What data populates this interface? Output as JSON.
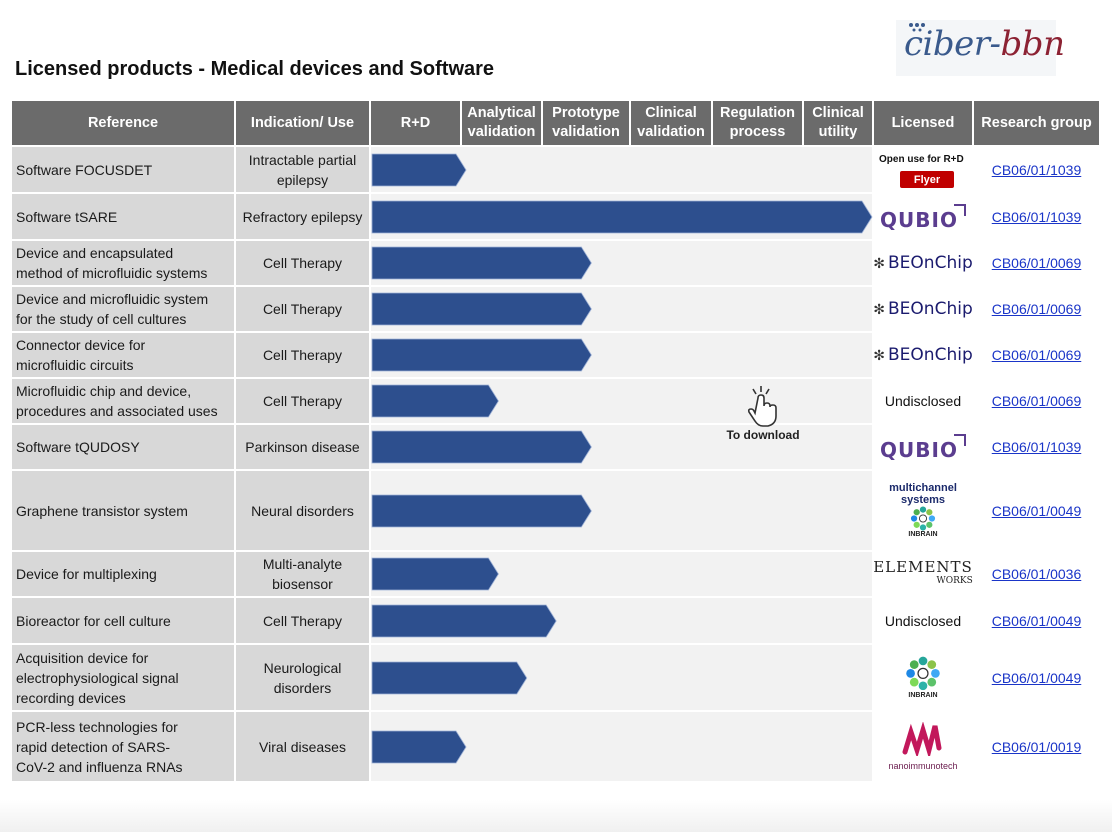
{
  "logo": {
    "text_c": "ciber-",
    "text_b": "bbn"
  },
  "title": "Licensed products - Medical devices and Software",
  "headers": {
    "reference": "Reference",
    "indication_line1": "Indication/ Use",
    "rd": "R+D",
    "analytical_1": "Analytical",
    "analytical_2": "validation",
    "prototype_1": "Prototype",
    "prototype_2": "validation",
    "clinical_1": "Clinical",
    "clinical_2": "validation",
    "regulation_1": "Regulation",
    "regulation_2": "process",
    "utility_1": "Clinical",
    "utility_2": "utility",
    "licensed": "Licensed",
    "group": "Research group"
  },
  "stages": [
    "R+D",
    "Analytical validation",
    "Prototype validation",
    "Clinical validation",
    "Regulation process",
    "Clinical utility"
  ],
  "rows": [
    {
      "ref1": "Software FOCUSDET",
      "ref2": "",
      "ref3": "",
      "ind1": "Intractable partial",
      "ind2": "epilepsy",
      "licensee": "Open use for R+D",
      "flyer": "Flyer",
      "logo_type": "open",
      "group": "CB06/01/1039",
      "progress": 1.05
    },
    {
      "ref1": "Software tSARE",
      "ref2": "",
      "ref3": "",
      "ind1": "Refractory epilepsy",
      "ind2": "",
      "licensee": "QUBIO",
      "logo_type": "qubio",
      "group": "CB06/01/1039",
      "progress": 6.0
    },
    {
      "ref1": "Device and encapsulated",
      "ref2": "method of microfluidic systems",
      "ref3": "",
      "ind1": "Cell Therapy",
      "ind2": "",
      "licensee": "BEOnChip",
      "logo_type": "beonchip",
      "group": "CB06/01/0069",
      "progress": 2.55
    },
    {
      "ref1": "Device and microfluidic system",
      "ref2": "for the study of cell cultures",
      "ref3": "",
      "ind1": "Cell Therapy",
      "ind2": "",
      "licensee": "BEOnChip",
      "logo_type": "beonchip",
      "group": "CB06/01/0069",
      "progress": 2.55
    },
    {
      "ref1": "Connector device for",
      "ref2": "microfluidic circuits",
      "ref3": "",
      "ind1": "Cell Therapy",
      "ind2": "",
      "licensee": "BEOnChip",
      "logo_type": "beonchip",
      "group": "CB06/01/0069",
      "progress": 2.55
    },
    {
      "ref1": "Microfluidic chip and device,",
      "ref2": "procedures and associated uses",
      "ref3": "",
      "ind1": "Cell Therapy",
      "ind2": "",
      "licensee": "Undisclosed",
      "logo_type": "text",
      "group": "CB06/01/0069",
      "progress": 1.45
    },
    {
      "ref1": "Software tQUDOSY",
      "ref2": "",
      "ref3": "",
      "ind1": "Parkinson disease",
      "ind2": "",
      "licensee": "QUBIO",
      "logo_type": "qubio",
      "group": "CB06/01/1039",
      "progress": 2.55
    },
    {
      "ref1": "Graphene transistor system",
      "ref2": "",
      "ref3": "",
      "ind1": "Neural disorders",
      "ind2": "",
      "licensee": "multichannel systems",
      "licensee2": "INBRAIN",
      "logo_type": "multichannel",
      "group": "CB06/01/0049",
      "progress": 2.55
    },
    {
      "ref1": "Device for multiplexing",
      "ref2": "",
      "ref3": "",
      "ind1": "Multi-analyte",
      "ind2": "biosensor",
      "licensee": "ELEMENTS",
      "licensee_sub": "WORKS",
      "logo_type": "elements",
      "group": "CB06/01/0036",
      "progress": 1.45
    },
    {
      "ref1": "Bioreactor for cell culture",
      "ref2": "",
      "ref3": "",
      "ind1": "Cell Therapy",
      "ind2": "",
      "licensee": "Undisclosed",
      "logo_type": "text",
      "group": "CB06/01/0049",
      "progress": 2.15
    },
    {
      "ref1": "Acquisition device for",
      "ref2": "electrophysiological signal",
      "ref3": "recording devices",
      "ind1": "Neurological",
      "ind2": "disorders",
      "licensee": "INBRAIN",
      "logo_type": "inbrain",
      "group": "CB06/01/0049",
      "progress": 1.8
    },
    {
      "ref1": "PCR-less technologies for",
      "ref2": "rapid detection of SARS-",
      "ref3": "CoV-2 and influenza RNAs",
      "ind1": "Viral diseases",
      "ind2": "",
      "licensee": "nanoimmunotech",
      "logo_type": "nano",
      "group": "CB06/01/0019",
      "progress": 1.05
    }
  ],
  "download": {
    "label": "To download"
  },
  "colors": {
    "header_bg": "#6b6b6b",
    "bar": "#2d4f8e",
    "row_label_bg": "#d8d8d8",
    "track_bg": "#f2f2f2",
    "link": "#1a35c8"
  }
}
